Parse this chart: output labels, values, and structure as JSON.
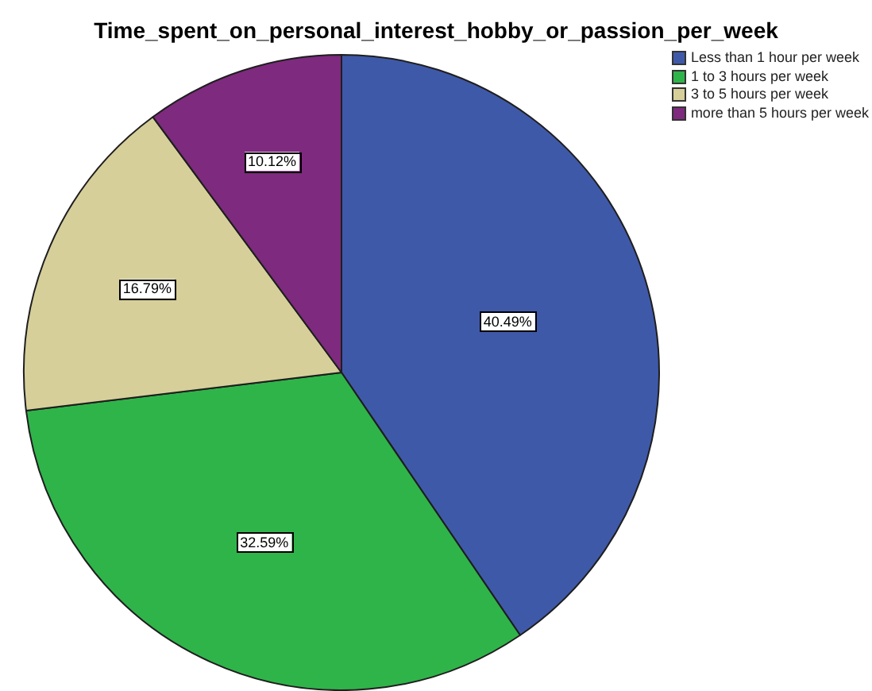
{
  "chart_data": {
    "type": "pie",
    "title": "Time_spent_on_personal_interest_hobby_or_passion_per_week",
    "categories": [
      "Less than 1 hour per week",
      "1 to 3 hours per week",
      "3 to 5 hours per week",
      "more than 5 hours per week"
    ],
    "values": [
      40.49,
      32.59,
      16.79,
      10.12
    ],
    "colors": [
      "#3f59a9",
      "#2fb44a",
      "#d6cf9a",
      "#7e2a7e"
    ],
    "value_labels": [
      "40.49%",
      "32.59%",
      "16.79%",
      "10.12%"
    ],
    "legend": "top right"
  }
}
